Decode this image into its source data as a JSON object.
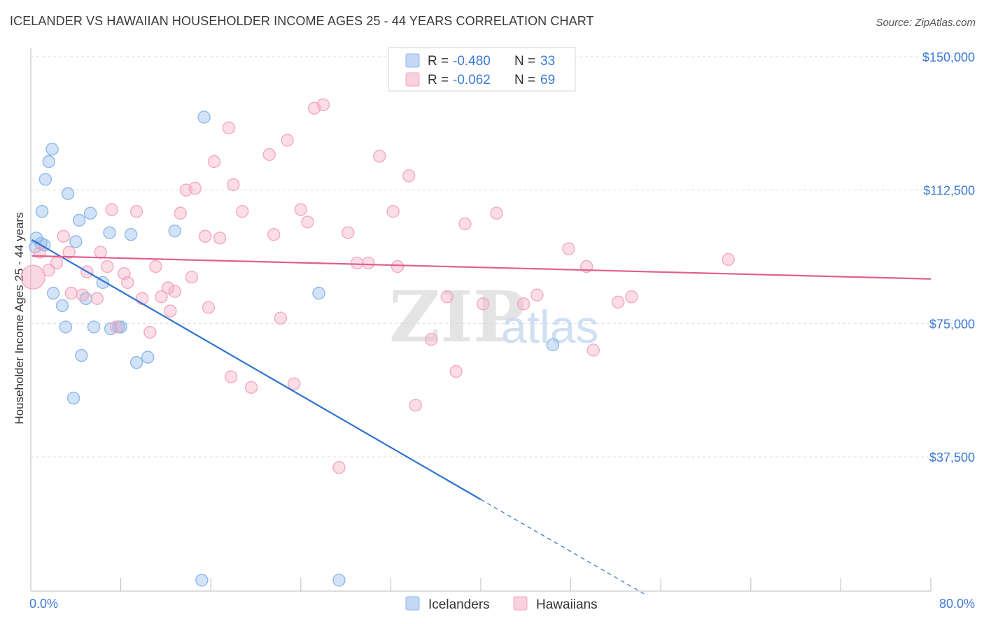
{
  "title": "ICELANDER VS HAWAIIAN HOUSEHOLDER INCOME AGES 25 - 44 YEARS CORRELATION CHART",
  "source": "Source: ZipAtlas.com",
  "watermark": {
    "zip": "ZIP",
    "atlas": "atlas"
  },
  "chart_data": {
    "type": "scatter",
    "ylabel": "Householder Income Ages 25 - 44 years",
    "xlabel": "",
    "xlim": [
      0,
      80
    ],
    "ylim": [
      0,
      155000
    ],
    "x_tick_labels": {
      "left": "0.0%",
      "right": "80.0%"
    },
    "y_ticks": [
      {
        "value": 37500,
        "label": "$37,500"
      },
      {
        "value": 75000,
        "label": "$75,000"
      },
      {
        "value": 112500,
        "label": "$112,500"
      },
      {
        "value": 150000,
        "label": "$150,000"
      }
    ],
    "legend_position": "top-center",
    "series": [
      {
        "name": "Icelanders",
        "color": "#8fb8ec",
        "line_color": "#2f74d0",
        "stats": {
          "r_label": "R =",
          "r_value": "-0.480",
          "n_label": "N =",
          "n_value": "33"
        },
        "trend": {
          "x0": 0.1,
          "y0": 98500,
          "x1": 40,
          "y1": 25500,
          "dash_x1": 54.5,
          "dash_y1": -1000
        },
        "points": [
          [
            0.4,
            96500
          ],
          [
            0.5,
            99000
          ],
          [
            0.9,
            97500
          ],
          [
            1.0,
            106500
          ],
          [
            1.3,
            115500
          ],
          [
            1.6,
            120500
          ],
          [
            1.9,
            124000
          ],
          [
            2.0,
            83500
          ],
          [
            2.8,
            80000
          ],
          [
            3.1,
            74000
          ],
          [
            3.3,
            111500
          ],
          [
            3.8,
            54000
          ],
          [
            4.0,
            98000
          ],
          [
            4.3,
            104000
          ],
          [
            4.5,
            66000
          ],
          [
            4.9,
            82000
          ],
          [
            5.3,
            106000
          ],
          [
            5.6,
            74000
          ],
          [
            6.4,
            86500
          ],
          [
            7.0,
            100500
          ],
          [
            7.1,
            73500
          ],
          [
            7.8,
            74000
          ],
          [
            8.9,
            100000
          ],
          [
            9.4,
            64000
          ],
          [
            10.4,
            65500
          ],
          [
            12.8,
            101000
          ],
          [
            15.4,
            133000
          ],
          [
            25.6,
            83500
          ],
          [
            46.4,
            69000
          ],
          [
            15.2,
            2800
          ],
          [
            27.4,
            2800
          ],
          [
            1.2,
            97000
          ],
          [
            8.0,
            74000
          ]
        ]
      },
      {
        "name": "Hawaiians",
        "color": "#f4a9c1",
        "line_color": "#e0608a",
        "stats": {
          "r_label": "R =",
          "r_value": "-0.062",
          "n_label": "N =",
          "n_value": "69"
        },
        "trend": {
          "x0": 0.1,
          "y0": 94000,
          "x1": 80,
          "y1": 87500
        },
        "points": [
          [
            0.2,
            88000
          ],
          [
            0.8,
            95000
          ],
          [
            1.6,
            90000
          ],
          [
            2.3,
            92000
          ],
          [
            2.9,
            99500
          ],
          [
            3.4,
            95000
          ],
          [
            3.6,
            83500
          ],
          [
            4.6,
            83000
          ],
          [
            5.0,
            89500
          ],
          [
            5.9,
            82000
          ],
          [
            6.2,
            95000
          ],
          [
            6.8,
            91000
          ],
          [
            7.2,
            107000
          ],
          [
            7.6,
            74000
          ],
          [
            8.3,
            89000
          ],
          [
            8.6,
            86500
          ],
          [
            9.4,
            106500
          ],
          [
            9.9,
            82000
          ],
          [
            10.6,
            72500
          ],
          [
            11.1,
            91000
          ],
          [
            11.6,
            82500
          ],
          [
            12.2,
            85000
          ],
          [
            12.4,
            78500
          ],
          [
            12.8,
            84000
          ],
          [
            13.3,
            106000
          ],
          [
            13.8,
            112500
          ],
          [
            14.3,
            88000
          ],
          [
            14.6,
            113000
          ],
          [
            15.5,
            99500
          ],
          [
            15.8,
            79500
          ],
          [
            16.3,
            120500
          ],
          [
            16.8,
            99000
          ],
          [
            17.6,
            130000
          ],
          [
            17.8,
            60000
          ],
          [
            18.0,
            114000
          ],
          [
            18.8,
            106500
          ],
          [
            19.6,
            57000
          ],
          [
            21.2,
            122500
          ],
          [
            21.6,
            100000
          ],
          [
            22.2,
            76500
          ],
          [
            22.8,
            126500
          ],
          [
            23.4,
            58000
          ],
          [
            24.0,
            107000
          ],
          [
            24.6,
            103500
          ],
          [
            25.2,
            135500
          ],
          [
            26.0,
            136500
          ],
          [
            27.4,
            34500
          ],
          [
            28.2,
            100500
          ],
          [
            29.0,
            92000
          ],
          [
            30.0,
            92000
          ],
          [
            31.0,
            122000
          ],
          [
            32.2,
            106500
          ],
          [
            32.6,
            91000
          ],
          [
            33.6,
            116500
          ],
          [
            34.2,
            52000
          ],
          [
            35.6,
            70500
          ],
          [
            37.0,
            82500
          ],
          [
            37.8,
            61500
          ],
          [
            38.6,
            103000
          ],
          [
            40.2,
            80500
          ],
          [
            41.4,
            106000
          ],
          [
            43.8,
            80500
          ],
          [
            45.0,
            83000
          ],
          [
            47.8,
            96000
          ],
          [
            49.4,
            91000
          ],
          [
            50.0,
            67500
          ],
          [
            52.2,
            81000
          ],
          [
            53.4,
            82500
          ],
          [
            62.0,
            93000
          ]
        ]
      }
    ]
  }
}
